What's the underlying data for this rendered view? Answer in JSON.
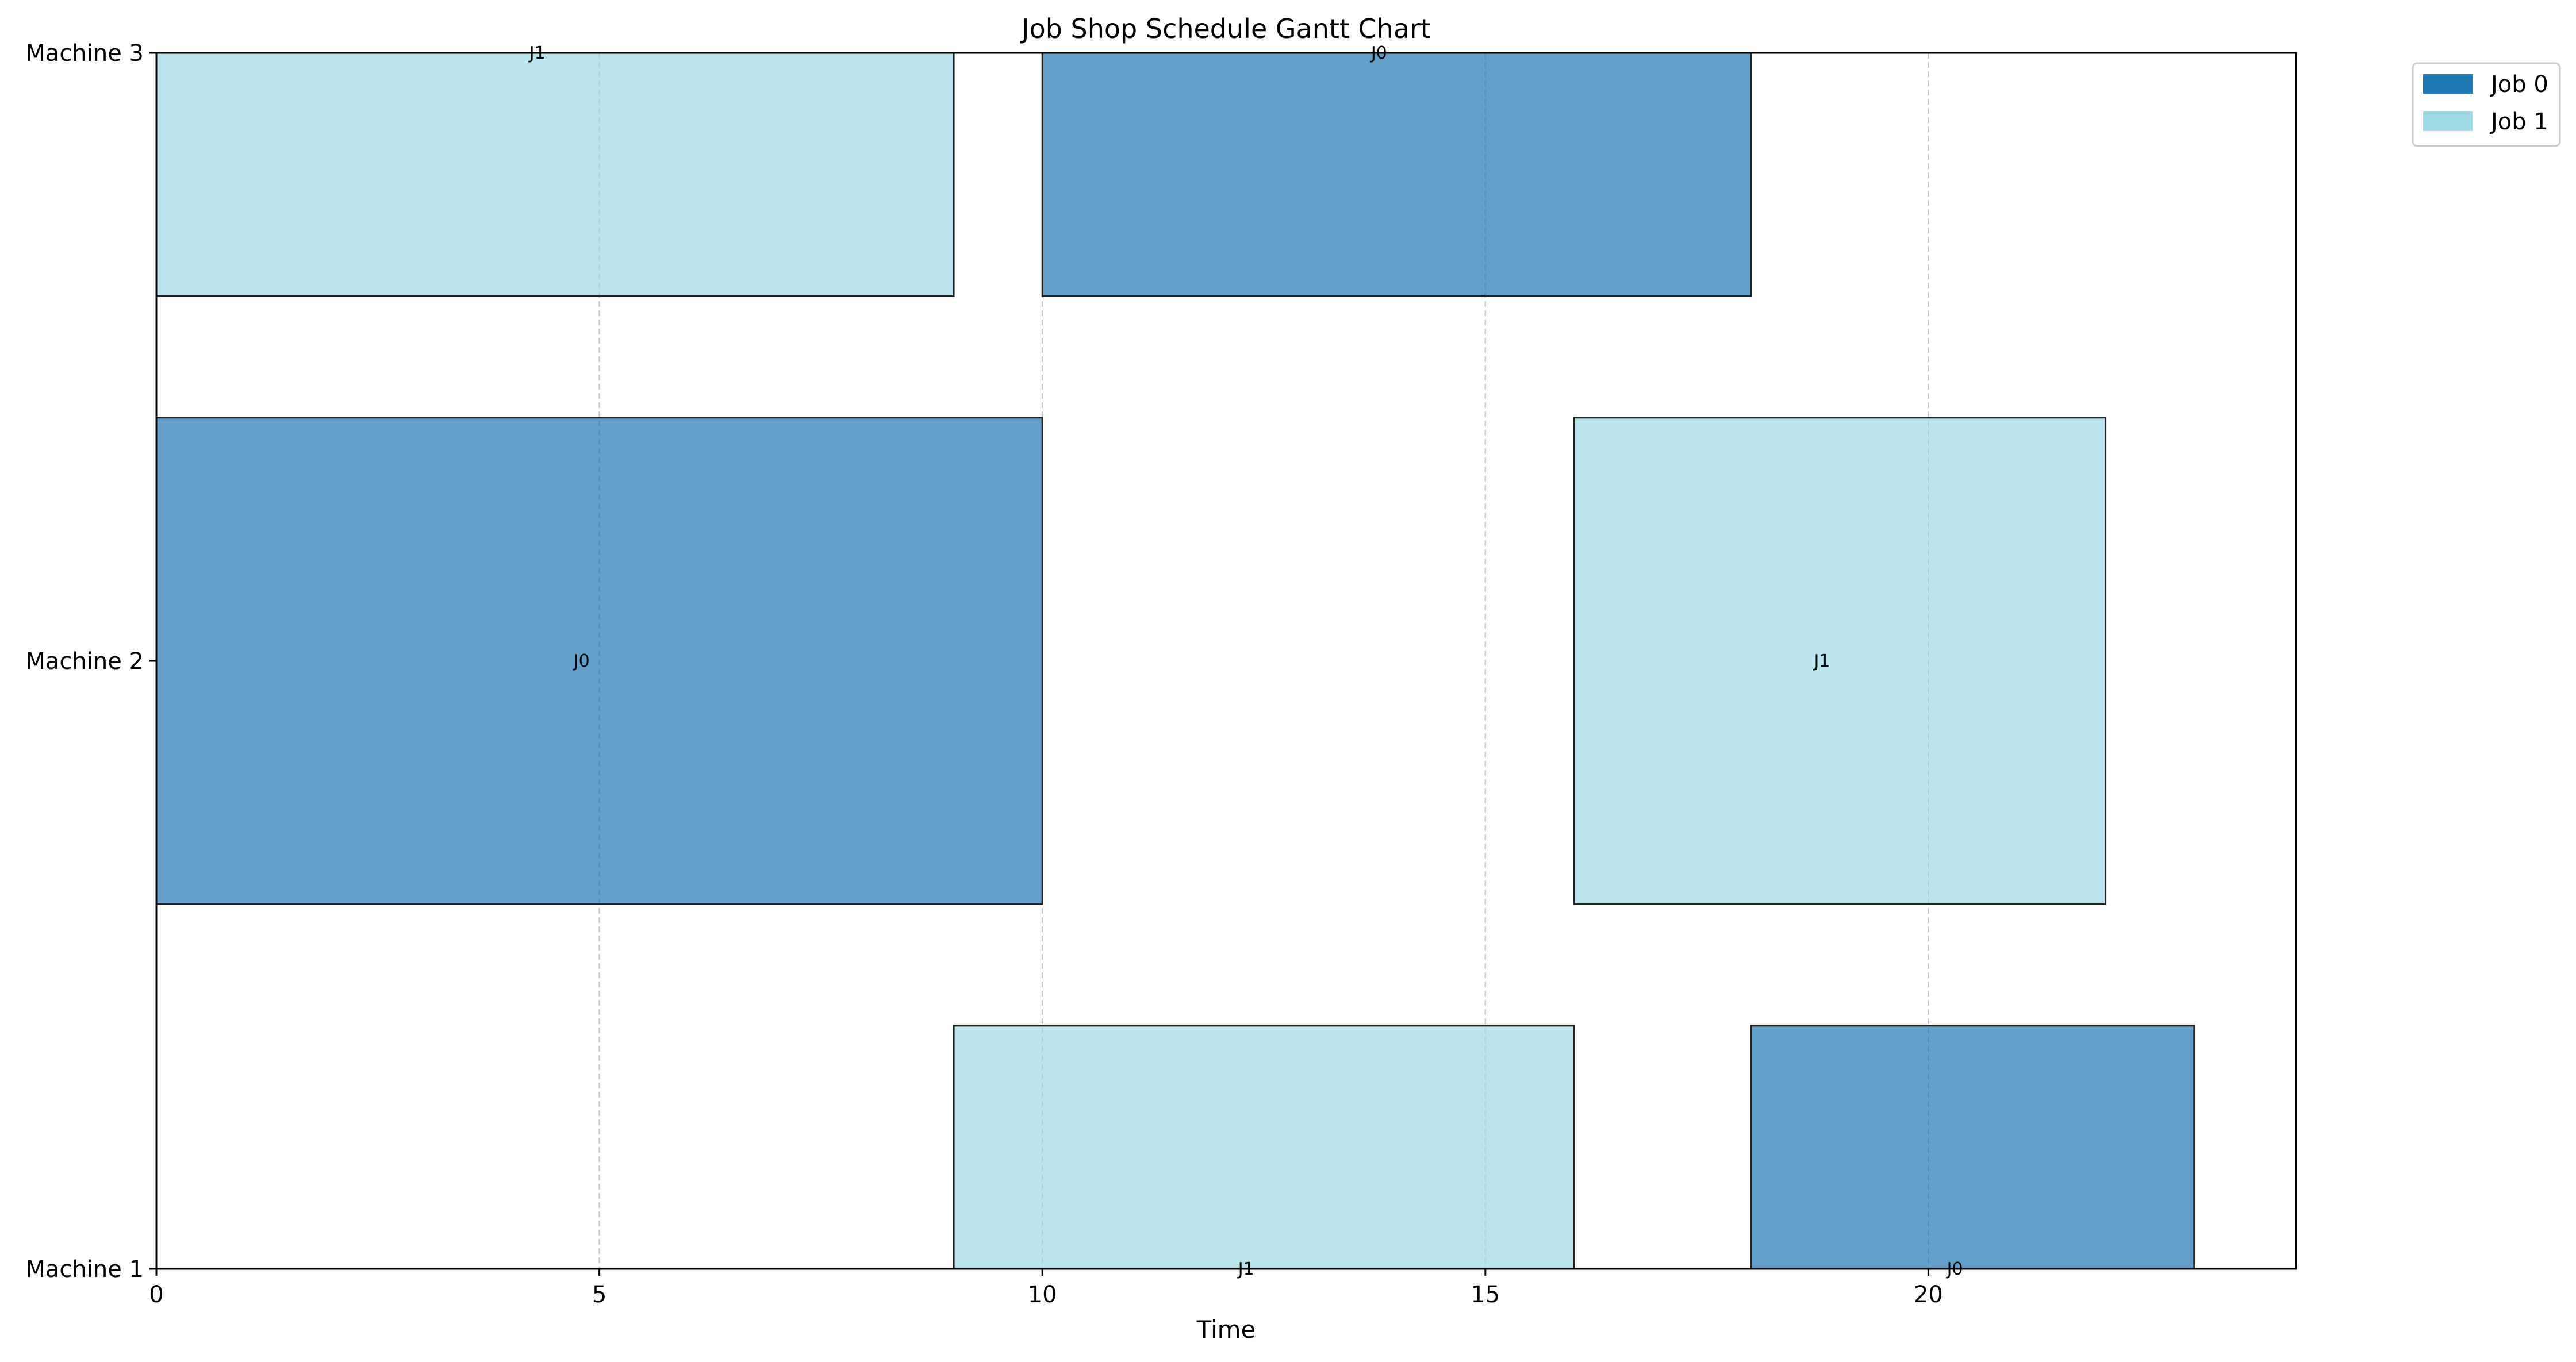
{
  "chart_data": {
    "type": "gantt",
    "title": "Job Shop Schedule Gantt Chart",
    "xlabel": "Time",
    "ylabel": "",
    "xlim": [
      0,
      24.15
    ],
    "xticks": [
      0,
      5,
      10,
      15,
      20
    ],
    "machines": [
      "Machine 1",
      "Machine 2",
      "Machine 3"
    ],
    "grid": {
      "x": true,
      "y": false,
      "style": "dashed"
    },
    "legend": {
      "placement": "outside top-right",
      "entries": [
        {
          "label": "Job 0",
          "color": "#1f77b4"
        },
        {
          "label": "Job 1",
          "color": "#9edae5"
        }
      ]
    },
    "tasks": [
      {
        "machine": "Machine 3",
        "job": "Job 1",
        "label": "J1",
        "start": 0,
        "end": 9,
        "color": "#9edae5"
      },
      {
        "machine": "Machine 3",
        "job": "Job 0",
        "label": "J0",
        "start": 10,
        "end": 18,
        "color": "#1f77b4"
      },
      {
        "machine": "Machine 2",
        "job": "Job 0",
        "label": "J0",
        "start": 0,
        "end": 10,
        "color": "#1f77b4"
      },
      {
        "machine": "Machine 2",
        "job": "Job 1",
        "label": "J1",
        "start": 16,
        "end": 22,
        "color": "#9edae5"
      },
      {
        "machine": "Machine 1",
        "job": "Job 1",
        "label": "J1",
        "start": 9,
        "end": 16,
        "color": "#9edae5"
      },
      {
        "machine": "Machine 1",
        "job": "Job 0",
        "label": "J0",
        "start": 18,
        "end": 23,
        "color": "#1f77b4"
      }
    ]
  }
}
